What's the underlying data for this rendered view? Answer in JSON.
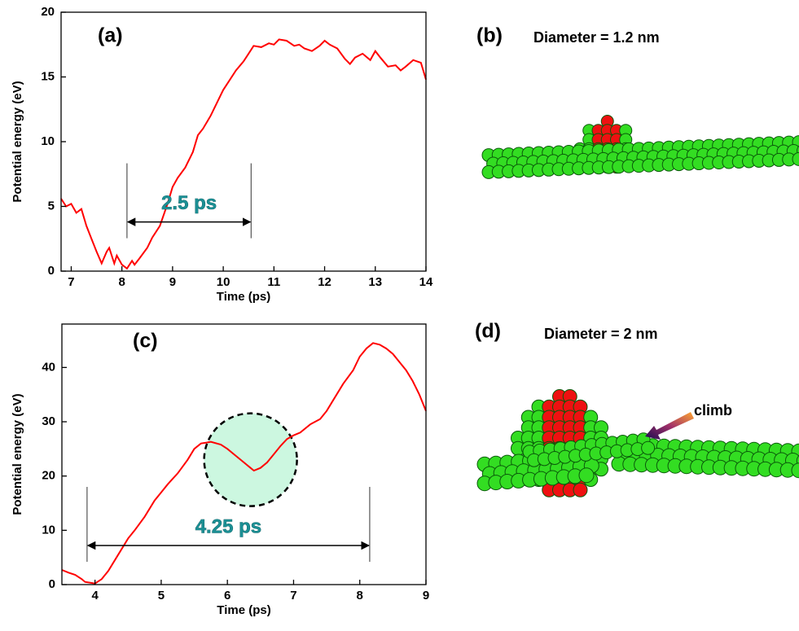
{
  "chart_data": [
    {
      "type": "line",
      "panel": "(a)",
      "xlabel": "Time (ps)",
      "ylabel": "Potential energy (eV)",
      "xlim": [
        6.8,
        14
      ],
      "ylim": [
        0,
        20
      ],
      "xticks": [
        7,
        8,
        9,
        10,
        11,
        12,
        13,
        14
      ],
      "yticks": [
        0,
        5,
        10,
        15,
        20
      ],
      "series": [
        {
          "color": "#ff0000",
          "x": [
            6.8,
            6.9,
            7.0,
            7.1,
            7.2,
            7.3,
            7.4,
            7.5,
            7.6,
            7.7,
            7.75,
            7.85,
            7.9,
            8.0,
            8.1,
            8.2,
            8.25,
            8.35,
            8.5,
            8.6,
            8.75,
            8.9,
            9.0,
            9.1,
            9.25,
            9.4,
            9.5,
            9.6,
            9.75,
            9.9,
            10.0,
            10.1,
            10.25,
            10.4,
            10.5,
            10.6,
            10.75,
            10.9,
            11.0,
            11.1,
            11.25,
            11.4,
            11.5,
            11.6,
            11.75,
            11.9,
            12.0,
            12.1,
            12.25,
            12.4,
            12.5,
            12.6,
            12.75,
            12.9,
            13.0,
            13.1,
            13.25,
            13.4,
            13.5,
            13.6,
            13.75,
            13.9,
            14.0
          ],
          "values": [
            5.6,
            5.0,
            5.2,
            4.5,
            4.8,
            3.5,
            2.5,
            1.5,
            0.6,
            1.5,
            1.8,
            0.6,
            1.2,
            0.5,
            0.2,
            0.8,
            0.5,
            1.0,
            1.8,
            2.6,
            3.5,
            5.2,
            6.5,
            7.2,
            8.0,
            9.2,
            10.5,
            11.0,
            12.0,
            13.2,
            14.0,
            14.6,
            15.5,
            16.2,
            16.8,
            17.4,
            17.3,
            17.6,
            17.5,
            17.9,
            17.8,
            17.4,
            17.5,
            17.2,
            17.0,
            17.4,
            17.8,
            17.5,
            17.2,
            16.4,
            16.0,
            16.5,
            16.8,
            16.3,
            17.0,
            16.5,
            15.8,
            15.9,
            15.5,
            15.8,
            16.3,
            16.1,
            14.8
          ]
        }
      ],
      "span": {
        "label": "2.5 ps",
        "x": [
          8.1,
          10.55
        ],
        "y": 3.8
      }
    },
    {
      "type": "line",
      "panel": "(c)",
      "xlabel": "Time (ps)",
      "ylabel": "Potential energy (eV)",
      "xlim": [
        3.5,
        9
      ],
      "ylim": [
        0,
        48
      ],
      "xticks": [
        4,
        5,
        6,
        7,
        8,
        9
      ],
      "yticks": [
        0,
        10,
        20,
        30,
        40
      ],
      "series": [
        {
          "color": "#ff0000",
          "x": [
            3.5,
            3.6,
            3.7,
            3.8,
            3.85,
            3.95,
            4.0,
            4.1,
            4.2,
            4.35,
            4.5,
            4.6,
            4.75,
            4.9,
            5.0,
            5.1,
            5.25,
            5.4,
            5.5,
            5.6,
            5.75,
            5.9,
            6.0,
            6.1,
            6.25,
            6.35,
            6.4,
            6.5,
            6.6,
            6.7,
            6.8,
            6.9,
            7.0,
            7.1,
            7.25,
            7.4,
            7.5,
            7.6,
            7.75,
            7.9,
            8.0,
            8.1,
            8.2,
            8.3,
            8.4,
            8.5,
            8.6,
            8.7,
            8.8,
            8.9,
            9.0
          ],
          "values": [
            2.7,
            2.2,
            1.8,
            1.0,
            0.5,
            0.3,
            0.2,
            1.0,
            2.5,
            5.5,
            8.5,
            10.0,
            12.5,
            15.5,
            17.0,
            18.5,
            20.5,
            23.0,
            25.0,
            26.0,
            26.3,
            25.8,
            25.0,
            24.0,
            22.5,
            21.5,
            21.0,
            21.5,
            22.5,
            24.0,
            25.5,
            26.8,
            27.5,
            28.0,
            29.5,
            30.5,
            32.0,
            34.0,
            37.0,
            39.5,
            42.0,
            43.5,
            44.5,
            44.2,
            43.5,
            42.5,
            41.0,
            39.5,
            37.5,
            35.0,
            32.0
          ]
        }
      ],
      "span": {
        "label": "4.25 ps",
        "x": [
          3.88,
          8.15
        ],
        "y": 7.2
      },
      "highlight": {
        "x": 6.35,
        "y": 23
      }
    }
  ],
  "images": [
    {
      "panel": "(b)",
      "caption": "Diameter = 1.2 nm"
    },
    {
      "panel": "(d)",
      "caption": "Diameter = 2 nm",
      "arrow_label": "climb"
    }
  ]
}
